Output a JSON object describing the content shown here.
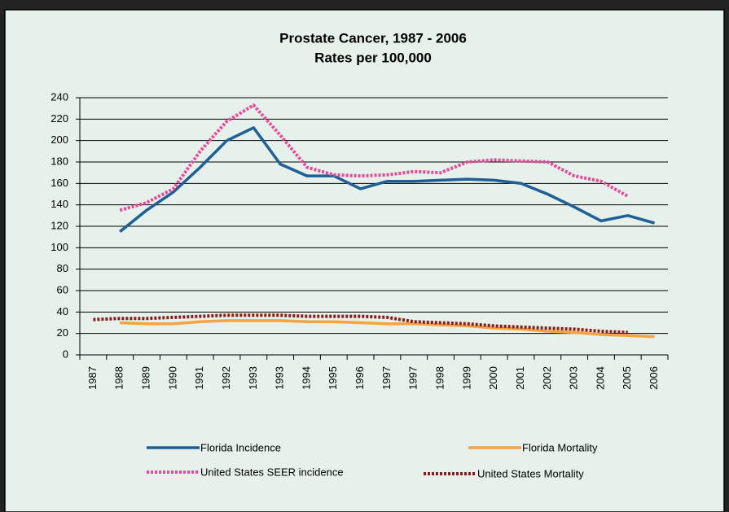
{
  "chart_data": {
    "type": "line",
    "title": "Prostate Cancer, 1987 - 2006",
    "subtitle": "Rates per 100,000",
    "categories": [
      "1987",
      "1988",
      "1989",
      "1990",
      "1991",
      "1992",
      "1993",
      "1993",
      "1994",
      "1995",
      "1996",
      "1997",
      "1997",
      "1998",
      "1999",
      "2000",
      "2001",
      "2002",
      "2003",
      "2004",
      "2005",
      "2006"
    ],
    "series": [
      {
        "name": "Florida Incidence",
        "color": "#1f5f96",
        "dotted": false,
        "values": [
          null,
          115,
          135,
          152,
          175,
          200,
          212,
          178,
          167,
          167,
          155,
          162,
          162,
          163,
          164,
          163,
          160,
          150,
          138,
          125,
          130,
          123
        ]
      },
      {
        "name": "Florida Mortality",
        "color": "#f7a342",
        "dotted": false,
        "values": [
          null,
          30,
          29,
          29,
          31,
          32,
          32,
          32,
          31,
          31,
          30,
          29,
          29,
          28,
          27,
          25,
          24,
          22,
          21,
          19,
          18,
          17
        ]
      },
      {
        "name": "United States SEER incidence",
        "color": "#e9479a",
        "dotted": true,
        "values": [
          null,
          135,
          142,
          155,
          190,
          218,
          233,
          205,
          175,
          168,
          167,
          168,
          171,
          170,
          180,
          182,
          181,
          180,
          167,
          162,
          148,
          null
        ]
      },
      {
        "name": "United States Mortality",
        "color": "#8c1b1b",
        "dotted": true,
        "values": [
          33,
          34,
          34,
          35,
          36,
          37,
          37,
          37,
          36,
          36,
          36,
          35,
          31,
          30,
          29,
          27,
          26,
          25,
          24,
          22,
          21,
          null
        ]
      }
    ],
    "ylim": [
      0,
      240
    ],
    "yticks": [
      0,
      20,
      40,
      60,
      80,
      100,
      120,
      140,
      160,
      180,
      200,
      220,
      240
    ],
    "grid": true
  }
}
